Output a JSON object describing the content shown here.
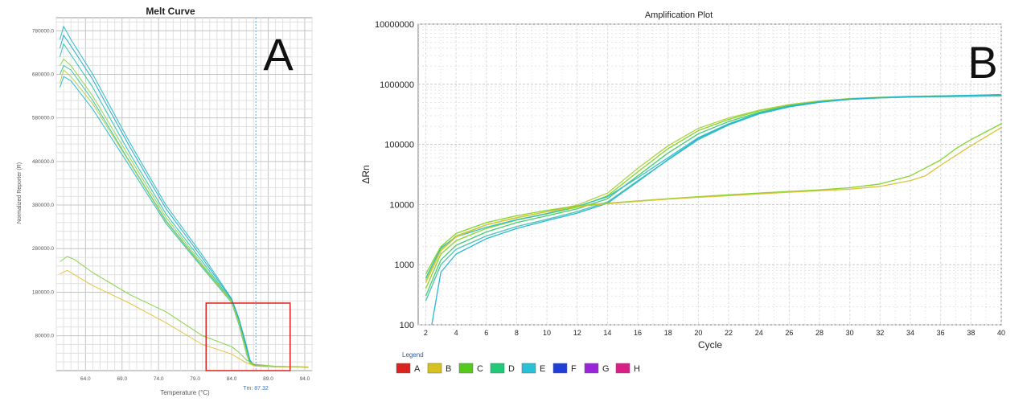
{
  "panel_a": {
    "letter": "A",
    "tm_label": "Tm: 87.32"
  },
  "panel_b": {
    "letter": "B"
  },
  "chart_data": [
    {
      "type": "line",
      "title": "Melt Curve",
      "xlabel": "Temperature (°C)",
      "ylabel": "Normalized Reporter (R)",
      "xlim": [
        60.0,
        95.0
      ],
      "ylim": [
        0,
        810000
      ],
      "x_ticks": [
        "64.0",
        "69.0",
        "74.0",
        "79.0",
        "84.0",
        "89.0",
        "94.0"
      ],
      "x_tick_values": [
        64,
        69,
        74,
        79,
        84,
        89,
        94
      ],
      "y_ticks": [
        "80000.0",
        "180000.0",
        "280000.0",
        "380000.0",
        "480000.0",
        "580000.0",
        "680000.0",
        "780000.0"
      ],
      "y_tick_values": [
        80000,
        180000,
        280000,
        380000,
        480000,
        580000,
        680000,
        780000
      ],
      "tm_temperature": 87.32,
      "grid": true,
      "highlight_box": {
        "x": [
          80.5,
          92.0
        ],
        "y": [
          0,
          155000
        ],
        "color": "#e0201c"
      },
      "series": [
        {
          "group": "main",
          "color": "#1fb8c4",
          "x": [
            60.5,
            61.0,
            62.0,
            65.0,
            70.0,
            75.0,
            80.0,
            84.0,
            85.0,
            86.0,
            86.5,
            87.0,
            88.0,
            90.0,
            94.5
          ],
          "y": [
            760000,
            790000,
            760000,
            680000,
            525000,
            380000,
            265000,
            165000,
            120000,
            60000,
            25000,
            14000,
            12000,
            10000,
            8000
          ]
        },
        {
          "group": "main",
          "color": "#21c2b0",
          "x": [
            60.5,
            61.0,
            62.0,
            65.0,
            70.0,
            75.0,
            80.0,
            84.0,
            85.0,
            86.0,
            86.5,
            87.0,
            88.0,
            90.0,
            94.5
          ],
          "y": [
            720000,
            750000,
            725000,
            650000,
            500000,
            360000,
            250000,
            160000,
            115000,
            50000,
            20000,
            13000,
            11000,
            9500,
            8000
          ]
        },
        {
          "group": "main",
          "color": "#2ec4a0",
          "x": [
            60.5,
            61.0,
            62.0,
            65.0,
            70.0,
            75.0,
            80.0,
            84.0,
            85.0,
            86.0,
            86.5,
            87.0,
            88.0,
            90.0,
            94.5
          ],
          "y": [
            680000,
            700000,
            690000,
            620000,
            480000,
            345000,
            240000,
            158000,
            110000,
            45000,
            18000,
            12000,
            10500,
            9000,
            8000
          ]
        },
        {
          "group": "main",
          "color": "#26b7c9",
          "x": [
            60.5,
            61.0,
            62.0,
            65.0,
            70.0,
            75.0,
            80.0,
            84.0,
            85.0,
            86.0,
            86.5,
            87.0,
            88.0,
            90.0,
            94.5
          ],
          "y": [
            650000,
            675000,
            665000,
            600000,
            470000,
            338000,
            236000,
            156000,
            105000,
            40000,
            16000,
            11500,
            10000,
            8800,
            8000
          ]
        },
        {
          "group": "main",
          "color": "#8fd44a",
          "x": [
            60.5,
            61.0,
            62.0,
            65.0,
            70.0,
            75.0,
            80.0,
            84.0,
            85.0,
            86.0,
            86.5,
            87.0,
            88.0,
            90.0,
            94.5
          ],
          "y": [
            700000,
            715000,
            700000,
            630000,
            490000,
            352000,
            244000,
            160000,
            112000,
            48000,
            19000,
            12500,
            10500,
            9000,
            8000
          ]
        },
        {
          "group": "main",
          "color": "#b7cf44",
          "x": [
            60.5,
            61.0,
            62.0,
            65.0,
            70.0,
            75.0,
            80.0,
            84.0,
            85.0,
            86.0,
            86.5,
            87.0,
            88.0,
            90.0,
            94.5
          ],
          "y": [
            660000,
            690000,
            675000,
            612000,
            478000,
            342000,
            238000,
            157000,
            108000,
            42000,
            17000,
            12000,
            10000,
            8800,
            8000
          ]
        },
        {
          "group": "main",
          "color": "#1aa9c8",
          "x": [
            60.5,
            61.0,
            62.0,
            65.0,
            70.0,
            75.0,
            80.0,
            84.0,
            85.0,
            86.0,
            86.5,
            87.0,
            88.0,
            90.0,
            94.5
          ],
          "y": [
            740000,
            770000,
            745000,
            668000,
            515000,
            372000,
            258000,
            163000,
            118000,
            55000,
            22000,
            13500,
            11000,
            9500,
            8000
          ]
        },
        {
          "group": "low",
          "color": "#7fd340",
          "x": [
            60.5,
            61.5,
            62.5,
            65.0,
            70.0,
            75.0,
            80.0,
            84.0,
            85.0,
            86.0,
            87.0,
            90.0,
            94.5
          ],
          "y": [
            250000,
            262000,
            255000,
            225000,
            175000,
            135000,
            80000,
            55000,
            42000,
            25000,
            15000,
            10000,
            8500
          ]
        },
        {
          "group": "low",
          "color": "#e3c23a",
          "x": [
            60.5,
            61.5,
            62.5,
            65.0,
            70.0,
            75.0,
            80.0,
            84.0,
            85.0,
            86.0,
            87.0,
            90.0,
            94.5
          ],
          "y": [
            222000,
            230000,
            220000,
            195000,
            155000,
            110000,
            60000,
            38000,
            28000,
            18000,
            12000,
            9500,
            8500
          ]
        }
      ]
    },
    {
      "type": "line",
      "title": "Amplification Plot",
      "xlabel": "Cycle",
      "ylabel": "ΔRn",
      "xlim": [
        1.5,
        40
      ],
      "ylim": [
        100,
        10000000
      ],
      "y_scale": "log",
      "x_ticks": [
        "2",
        "4",
        "6",
        "8",
        "10",
        "12",
        "14",
        "16",
        "18",
        "20",
        "22",
        "24",
        "26",
        "28",
        "30",
        "32",
        "34",
        "36",
        "38",
        "40"
      ],
      "x_tick_values": [
        2,
        4,
        6,
        8,
        10,
        12,
        14,
        16,
        18,
        20,
        22,
        24,
        26,
        28,
        30,
        32,
        34,
        36,
        38,
        40
      ],
      "y_ticks": [
        "100",
        "1000",
        "10000",
        "100000",
        "1000000",
        "10000000"
      ],
      "y_tick_values": [
        100,
        1000,
        10000,
        100000,
        1000000,
        10000000
      ],
      "grid": true,
      "legend_title": "Legend",
      "legend_position": "bottom-left",
      "legend": [
        {
          "label": "A",
          "color": "#d8231f"
        },
        {
          "label": "B",
          "color": "#d6c21e"
        },
        {
          "label": "C",
          "color": "#56c81e"
        },
        {
          "label": "D",
          "color": "#22c87a"
        },
        {
          "label": "E",
          "color": "#29c1d6"
        },
        {
          "label": "F",
          "color": "#1f3ed6"
        },
        {
          "label": "G",
          "color": "#9a24d8"
        },
        {
          "label": "H",
          "color": "#d81f86"
        }
      ],
      "series": [
        {
          "color": "#7ed321",
          "x": [
            2,
            3,
            4,
            6,
            8,
            10,
            12,
            14,
            16,
            18,
            20,
            22,
            24,
            26,
            28,
            30,
            32,
            34,
            36,
            38,
            40
          ],
          "y": [
            400,
            1500,
            2500,
            4000,
            5500,
            7000,
            9000,
            14000,
            35000,
            85000,
            170000,
            260000,
            360000,
            450000,
            520000,
            570000,
            600000,
            620000,
            630000,
            640000,
            650000
          ]
        },
        {
          "color": "#a9d13a",
          "x": [
            2,
            3,
            4,
            6,
            8,
            10,
            12,
            14,
            16,
            18,
            20,
            22,
            24,
            26,
            28,
            30,
            32,
            34,
            36,
            38,
            40
          ],
          "y": [
            550,
            1800,
            3000,
            4600,
            6000,
            7600,
            9800,
            15500,
            40000,
            95000,
            185000,
            275000,
            370000,
            460000,
            530000,
            580000,
            610000,
            630000,
            640000,
            650000,
            660000
          ]
        },
        {
          "color": "#3fc86a",
          "x": [
            2,
            3,
            4,
            6,
            8,
            10,
            12,
            14,
            16,
            18,
            20,
            22,
            24,
            26,
            28,
            30,
            32,
            34,
            36,
            38,
            40
          ],
          "y": [
            300,
            1200,
            2100,
            3500,
            5000,
            6500,
            8500,
            12500,
            30000,
            72000,
            150000,
            240000,
            340000,
            440000,
            515000,
            565000,
            595000,
            615000,
            625000,
            635000,
            645000
          ]
        },
        {
          "color": "#2bbfc9",
          "x": [
            2,
            3,
            4,
            6,
            8,
            10,
            12,
            14,
            16,
            18,
            20,
            22,
            24,
            26,
            28,
            30,
            32,
            34,
            36,
            38,
            40
          ],
          "y": [
            600,
            1900,
            2900,
            4200,
            5600,
            7100,
            9300,
            13500,
            28000,
            60000,
            130000,
            220000,
            330000,
            430000,
            510000,
            570000,
            600000,
            620000,
            635000,
            650000,
            670000
          ]
        },
        {
          "color": "#45c0b0",
          "x": [
            2,
            3,
            4,
            6,
            8,
            10,
            12,
            14,
            16,
            18,
            20,
            22,
            24,
            26,
            28,
            30,
            32,
            34,
            36,
            38,
            40
          ],
          "y": [
            250,
            1000,
            1800,
            3000,
            4300,
            5700,
            7600,
            11000,
            25000,
            55000,
            120000,
            210000,
            320000,
            420000,
            500000,
            560000,
            590000,
            610000,
            620000,
            630000,
            640000
          ]
        },
        {
          "color": "#1db5d2",
          "x": [
            2.4,
            3,
            4,
            6,
            8,
            10,
            12,
            14,
            16,
            18,
            20,
            22,
            24,
            26,
            28,
            30,
            32,
            34,
            36,
            38,
            40
          ],
          "y": [
            100,
            750,
            1500,
            2700,
            4000,
            5400,
            7200,
            10500,
            24000,
            56000,
            125000,
            215000,
            325000,
            425000,
            505000,
            565000,
            600000,
            625000,
            640000,
            655000,
            675000
          ]
        },
        {
          "color": "#7ed321",
          "x": [
            2,
            3,
            4,
            6,
            8,
            10,
            12,
            14,
            16,
            18,
            20,
            22,
            24,
            26,
            28,
            30,
            32,
            34,
            36,
            37,
            38,
            40
          ],
          "y": [
            700,
            2000,
            3300,
            5000,
            6500,
            8000,
            9500,
            10500,
            11500,
            12500,
            13500,
            14500,
            15500,
            16500,
            17500,
            19000,
            22000,
            30000,
            55000,
            85000,
            120000,
            220000
          ]
        },
        {
          "color": "#d9c12e",
          "x": [
            2,
            3,
            4,
            6,
            8,
            10,
            12,
            14,
            16,
            18,
            20,
            22,
            24,
            26,
            28,
            30,
            32,
            34,
            35,
            36,
            38,
            40
          ],
          "y": [
            500,
            1700,
            2900,
            4600,
            6100,
            7600,
            9200,
            10300,
            11300,
            12300,
            13200,
            14000,
            15000,
            16000,
            17000,
            18000,
            20000,
            25000,
            30000,
            45000,
            95000,
            190000
          ]
        }
      ]
    }
  ]
}
